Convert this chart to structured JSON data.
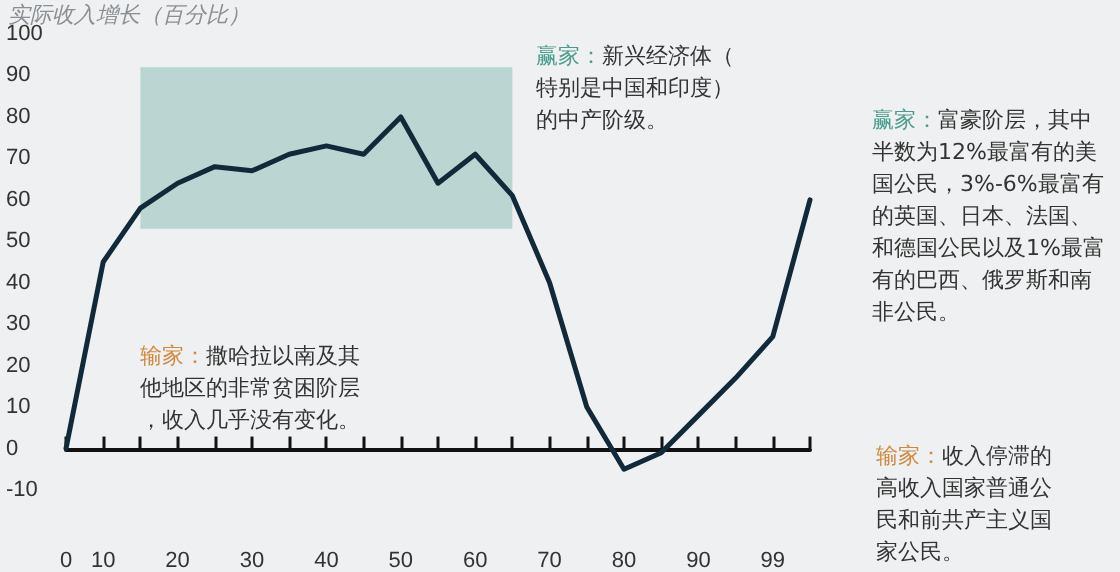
{
  "chart_data": {
    "type": "line",
    "ylabel": "实际收入增长（百分比）",
    "categories": [
      "0",
      "10",
      null,
      "20",
      null,
      "30",
      null,
      "40",
      null,
      "50",
      null,
      "60",
      null,
      "70",
      null,
      "80",
      null,
      "90",
      null,
      "99",
      null
    ],
    "series": [
      {
        "color": "#12293a",
        "values": [
          0,
          45,
          58,
          64,
          68,
          67,
          71,
          73,
          71,
          80,
          64,
          71,
          61,
          40,
          10,
          -5,
          -1,
          8,
          17,
          27,
          60
        ]
      }
    ],
    "ylim": [
      -10,
      100
    ],
    "yticks": [
      -10,
      0,
      10,
      20,
      30,
      40,
      50,
      60,
      70,
      80,
      90,
      100
    ],
    "bands": [
      {
        "axis": "y",
        "from": 53,
        "to": 92,
        "color": "#a9cdc7"
      }
    ],
    "marker": "none",
    "line_style": "solid",
    "annotations": [
      "赢家：新兴经济体（特别是中国和印度）的中产阶级。",
      "赢家：富豪阶层，其中半数为12%最富有的美国公民，3%-6%最富有的英国、日本、法国、和德国公民以及1%最富有的巴西、俄罗斯和南非公民。",
      "输家：撒哈拉以南及其他地区的非常贫困阶层，收入几乎没有变化。",
      "输家：收入停滞的高收入国家普通公民和前共产主义国家公民。"
    ]
  }
}
